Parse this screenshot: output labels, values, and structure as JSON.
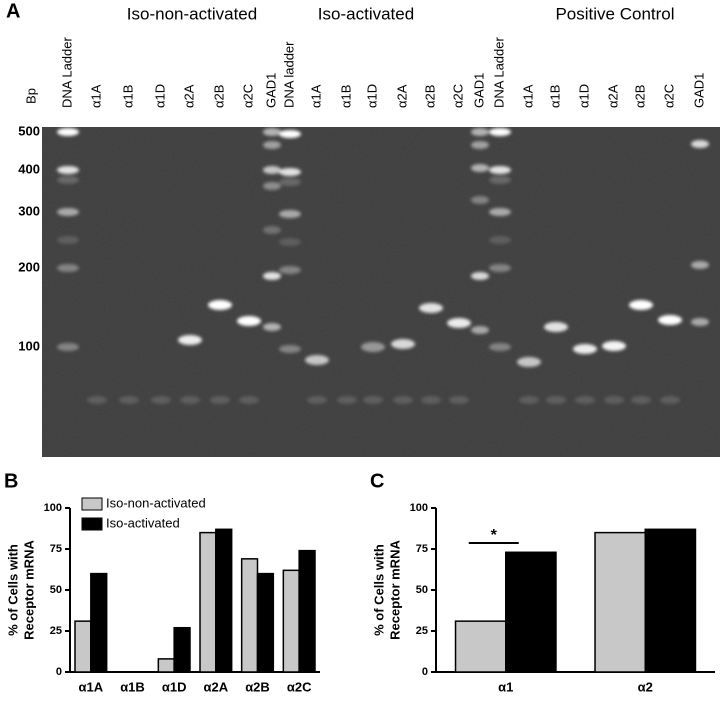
{
  "panel_labels": [
    "A",
    "B",
    "C"
  ],
  "gel": {
    "groups": [
      "Iso-non-activated",
      "Iso-activated",
      "Positive Control"
    ],
    "size_unit": "Bp",
    "sizes": [
      "500",
      "400",
      "300",
      "200",
      "100"
    ],
    "lanes": [
      "DNA Ladder",
      "α1A",
      "α1B",
      "α1D",
      "α2A",
      "α2B",
      "α2C",
      "GAD1",
      "DNA ladder",
      "α1A",
      "α1B",
      "α1D",
      "α2A",
      "α2B",
      "α2C",
      "GAD1",
      "DNA Ladder",
      "α1A",
      "α1B",
      "α1D",
      "α2A",
      "α2B",
      "α2C",
      "GAD1"
    ]
  },
  "chart_data": [
    {
      "type": "bar",
      "ylabel": [
        "% of Cells with",
        "Receptor mRNA"
      ],
      "categories": [
        "α1A",
        "α1B",
        "α1D",
        "α2A",
        "α2B",
        "α2C"
      ],
      "series": [
        {
          "name": "Iso-non-activated",
          "color": "#c8c8c8",
          "values": [
            31,
            0,
            8,
            85,
            69,
            62
          ]
        },
        {
          "name": "Iso-activated",
          "color": "#000000",
          "values": [
            60,
            0,
            27,
            87,
            60,
            74
          ]
        }
      ],
      "ylim": [
        0,
        100
      ],
      "yticks": [
        0,
        25,
        50,
        75,
        100
      ],
      "grid": false,
      "legend": "top-left"
    },
    {
      "type": "bar",
      "ylabel": [
        "% of Cells with",
        "Receptor mRNA"
      ],
      "categories": [
        "α1",
        "α2"
      ],
      "series": [
        {
          "name": "Iso-non-activated",
          "color": "#c8c8c8",
          "values": [
            31,
            85
          ]
        },
        {
          "name": "Iso-activated",
          "color": "#000000",
          "values": [
            73,
            87
          ]
        }
      ],
      "ylim": [
        0,
        100
      ],
      "yticks": [
        0,
        25,
        50,
        75,
        100
      ],
      "grid": false,
      "annotation": "*"
    }
  ]
}
